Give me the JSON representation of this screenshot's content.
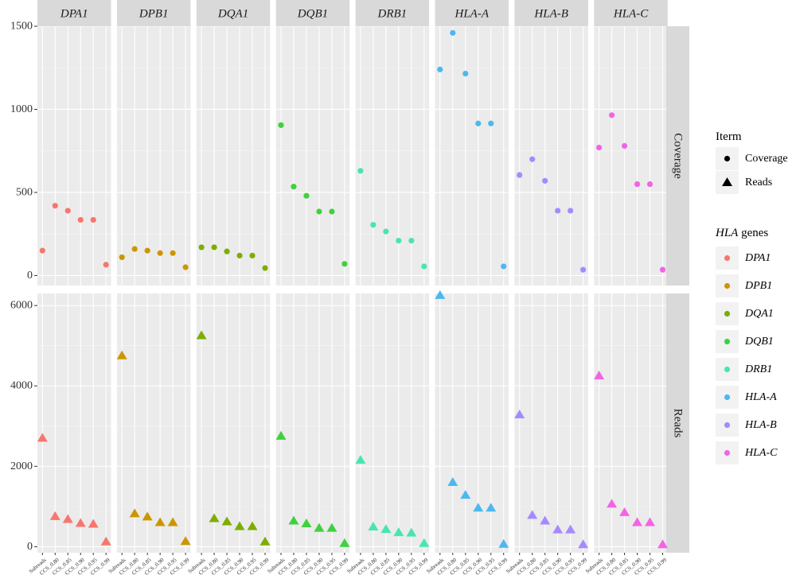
{
  "chart_data": {
    "type": "scatter",
    "facet_columns": [
      "DPA1",
      "DPB1",
      "DQA1",
      "DQB1",
      "DRB1",
      "HLA-A",
      "HLA-B",
      "HLA-C"
    ],
    "facet_rows": [
      "Coverage",
      "Reads"
    ],
    "categories": [
      "Subreads",
      "CCS_0.80",
      "CCS_0.85",
      "CCS_0.90",
      "CCS_0.95",
      "CCS_0.99"
    ],
    "rows": [
      {
        "name": "Coverage",
        "ylim": [
          -60,
          1500
        ],
        "yticks": [
          0,
          500,
          1000,
          1500
        ],
        "shape": "circle",
        "series": [
          {
            "name": "DPA1",
            "values": [
              150,
              420,
              390,
              335,
              335,
              65
            ]
          },
          {
            "name": "DPB1",
            "values": [
              110,
              160,
              150,
              135,
              135,
              50
            ]
          },
          {
            "name": "DQA1",
            "values": [
              170,
              170,
              145,
              120,
              120,
              45
            ]
          },
          {
            "name": "DQB1",
            "values": [
              905,
              535,
              480,
              385,
              385,
              70
            ]
          },
          {
            "name": "DRB1",
            "values": [
              630,
              305,
              265,
              210,
              210,
              55
            ]
          },
          {
            "name": "HLA-A",
            "values": [
              1240,
              1460,
              1215,
              915,
              915,
              55
            ]
          },
          {
            "name": "HLA-B",
            "values": [
              605,
              700,
              570,
              390,
              390,
              35
            ]
          },
          {
            "name": "HLA-C",
            "values": [
              770,
              965,
              780,
              550,
              550,
              35
            ]
          }
        ]
      },
      {
        "name": "Reads",
        "ylim": [
          -150,
          6300
        ],
        "yticks": [
          0,
          2000,
          4000,
          6000
        ],
        "shape": "triangle",
        "series": [
          {
            "name": "DPA1",
            "values": [
              2700,
              750,
              680,
              580,
              560,
              120
            ]
          },
          {
            "name": "DPB1",
            "values": [
              4750,
              820,
              740,
              600,
              600,
              130
            ]
          },
          {
            "name": "DQA1",
            "values": [
              5250,
              700,
              620,
              500,
              500,
              120
            ]
          },
          {
            "name": "DQB1",
            "values": [
              2750,
              640,
              570,
              460,
              460,
              80
            ]
          },
          {
            "name": "DRB1",
            "values": [
              2150,
              490,
              430,
              350,
              340,
              80
            ]
          },
          {
            "name": "HLA-A",
            "values": [
              6250,
              1600,
              1280,
              960,
              960,
              60
            ]
          },
          {
            "name": "HLA-B",
            "values": [
              3280,
              780,
              640,
              420,
              420,
              50
            ]
          },
          {
            "name": "HLA-C",
            "values": [
              4250,
              1060,
              850,
              600,
              600,
              50
            ]
          }
        ]
      }
    ],
    "colors": {
      "DPA1": "#F8766D",
      "DPB1": "#CD9600",
      "DQA1": "#7CAE00",
      "DQB1": "#3FD13F",
      "DRB1": "#48E5B0",
      "HLA-A": "#4DB8F0",
      "HLA-B": "#A58AFF",
      "HLA-C": "#F264E6"
    },
    "grid": true,
    "legend_placement": "right",
    "legend": {
      "shape_title": "Iterm",
      "shape_entries": [
        "Coverage",
        "Reads"
      ],
      "color_title_italic": "HLA",
      "color_title_rest": " genes",
      "color_entries": [
        "DPA1",
        "DPB1",
        "DQA1",
        "DQB1",
        "DRB1",
        "HLA-A",
        "HLA-B",
        "HLA-C"
      ]
    }
  }
}
